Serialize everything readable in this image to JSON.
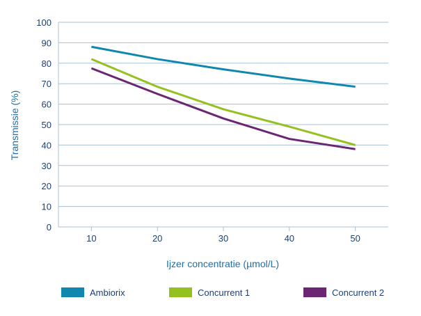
{
  "chart_data": {
    "type": "line",
    "xlabel": "Ijzer concentratie (µmol/L)",
    "ylabel": "Transmissie (%)",
    "x": [
      10,
      20,
      30,
      40,
      50
    ],
    "xlim": [
      5,
      55
    ],
    "ylim": [
      0,
      100
    ],
    "x_ticks": [
      "10",
      "20",
      "30",
      "40",
      "50"
    ],
    "y_ticks": [
      "0",
      "10",
      "20",
      "30",
      "40",
      "50",
      "60",
      "70",
      "80",
      "90",
      "100"
    ],
    "grid": "horizontal",
    "legend_position": "bottom",
    "series": [
      {
        "name": "Ambiorix",
        "color": "#1187b0",
        "values": [
          88,
          82,
          77,
          72.5,
          68.5
        ]
      },
      {
        "name": "Concurrent 1",
        "color": "#94c11f",
        "values": [
          82,
          68.5,
          57.5,
          49,
          40
        ]
      },
      {
        "name": "Concurrent 2",
        "color": "#6b2573",
        "values": [
          77.5,
          65,
          53,
          43,
          38
        ]
      }
    ],
    "colors": {
      "grid": "#a7c0d3",
      "axis_text": "#1b3f73",
      "axis_title": "#1d6fa6"
    }
  }
}
